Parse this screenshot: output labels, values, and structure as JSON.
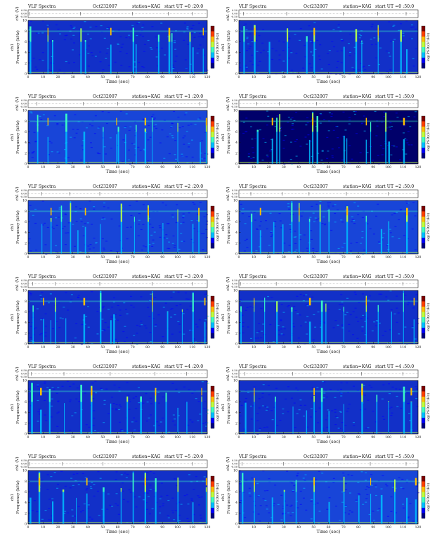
{
  "chart_data": {
    "type": "heatmap",
    "title_prefix": "VLF Spectra",
    "date": "Oct232007",
    "station": "station=KAG",
    "start_prefix": "start",
    "ut_label": "UT",
    "upper_ylabel": "ch1 (V)",
    "upper_yticks": [
      "0.50",
      "0.00",
      "-0.50"
    ],
    "ylabel_line1": "ch1",
    "ylabel_line2": "Frequency (kHz)",
    "yticks": [
      "0",
      "2",
      "4",
      "6",
      "8",
      "10"
    ],
    "xticks": [
      "0",
      "10",
      "20",
      "30",
      "40",
      "50",
      "60",
      "70",
      "80",
      "90",
      "100",
      "110",
      "120"
    ],
    "xlabel": "Time (sec)",
    "colorbar_label": "log(PSD)(V²/Hz)",
    "xlim": [
      0,
      120
    ],
    "ylim_khz": [
      0,
      10
    ],
    "colorscale": [
      "#00007f",
      "#0000ff",
      "#00bfff",
      "#3fffbf",
      "#bfff3f",
      "#ffbf00",
      "#ff3f00",
      "#7f0000"
    ],
    "panels": [
      {
        "start_ut": "=0 :20:0",
        "background": "#1230c8",
        "bursts": [
          1,
          13,
          16,
          35,
          38,
          55,
          70,
          72,
          87,
          94,
          96,
          108,
          110,
          117
        ]
      },
      {
        "start_ut": "=0 :50:0",
        "background": "#1230c8",
        "bursts": [
          3,
          10,
          20,
          32,
          45,
          50,
          70,
          78,
          82,
          93,
          103,
          108,
          112
        ]
      },
      {
        "start_ut": "=1 :20:0",
        "background": "#1845d8",
        "bursts": [
          6,
          13,
          25,
          37,
          50,
          59,
          60,
          65,
          72,
          78,
          83,
          100,
          115,
          119
        ]
      },
      {
        "start_ut": "=1 :50:0",
        "background": "#00006a",
        "bursts": [
          12,
          22,
          25,
          27,
          47,
          49,
          52,
          70,
          72,
          85,
          88,
          98,
          100,
          110
        ]
      },
      {
        "start_ut": "=2 :20:0",
        "background": "#1845d8",
        "bursts": [
          9,
          15,
          22,
          28,
          33,
          38,
          48,
          62,
          71,
          80,
          90,
          100,
          110,
          114
        ]
      },
      {
        "start_ut": "=2 :50:0",
        "background": "#1845d8",
        "bursts": [
          8,
          14,
          23,
          29,
          35,
          40,
          47,
          54,
          60,
          72,
          85,
          95,
          100,
          112
        ]
      },
      {
        "start_ut": "=3 :20:0",
        "background": "#1230c8",
        "bursts": [
          3,
          10,
          15,
          18,
          25,
          37,
          48,
          55,
          57,
          83,
          93,
          103,
          110,
          118
        ]
      },
      {
        "start_ut": "=3 :50:0",
        "background": "#1230c8",
        "bursts": [
          1,
          10,
          17,
          25,
          35,
          47,
          55,
          58,
          70,
          85,
          93,
          102,
          110,
          117
        ]
      },
      {
        "start_ut": "=4 :20:0",
        "background": "#1230c8",
        "bursts": [
          2,
          8,
          14,
          24,
          35,
          42,
          55,
          66,
          75,
          85,
          92,
          100,
          106,
          116
        ]
      },
      {
        "start_ut": "=4 :50:0",
        "background": "#1230c8",
        "bursts": [
          4,
          10,
          24,
          36,
          45,
          50,
          55,
          60,
          70,
          82,
          92,
          100,
          110,
          115
        ]
      },
      {
        "start_ut": "=5 :20:0",
        "background": "#1230c8",
        "bursts": [
          1,
          7,
          16,
          23,
          32,
          39,
          50,
          62,
          70,
          78,
          85,
          100,
          110,
          119
        ]
      },
      {
        "start_ut": "=5 :50:0",
        "background": "#1845d8",
        "bursts": [
          2,
          10,
          22,
          30,
          38,
          50,
          60,
          70,
          80,
          88,
          95,
          104,
          112,
          118
        ]
      }
    ]
  }
}
